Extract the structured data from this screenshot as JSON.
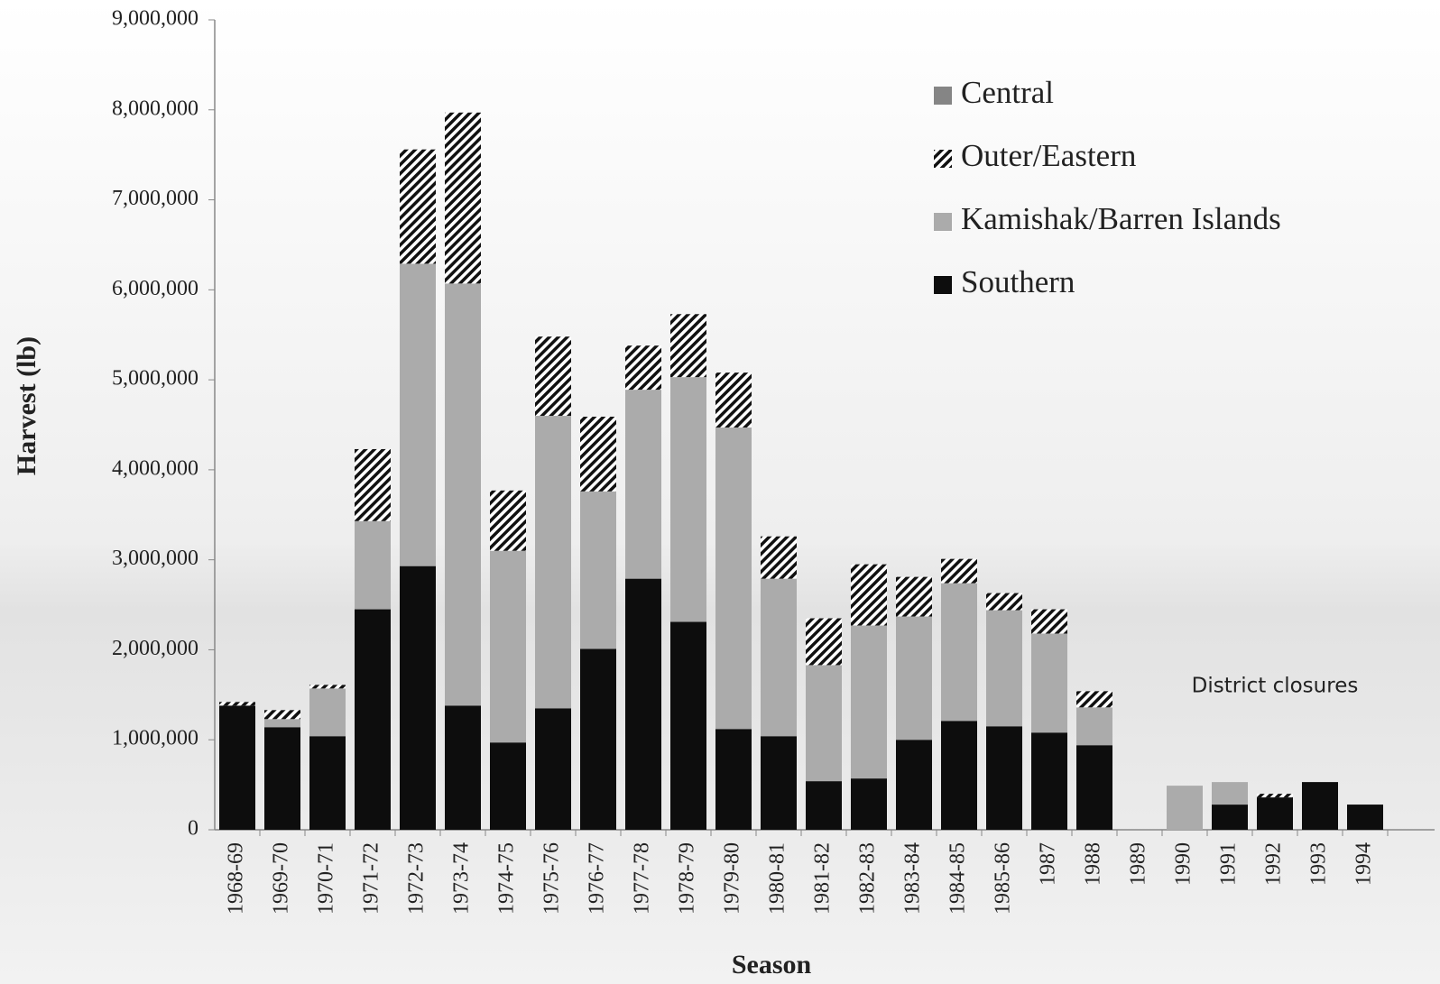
{
  "chart_data": {
    "type": "stacked-bar",
    "x_label": "Season",
    "y_label": "Harvest (lb)",
    "annotation": "District closures",
    "categories": [
      "1968-69",
      "1969-70",
      "1970-71",
      "1971-72",
      "1972-73",
      "1973-74",
      "1974-75",
      "1975-76",
      "1976-77",
      "1977-78",
      "1978-79",
      "1979-80",
      "1980-81",
      "1981-82",
      "1982-83",
      "1983-84",
      "1984-85",
      "1985-86",
      "1987",
      "1988",
      "1989",
      "1990",
      "1991",
      "1992",
      "1993",
      "1994"
    ],
    "series": [
      {
        "name": "Central",
        "color": "#858585",
        "hatch": false,
        "values": [
          0,
          0,
          0,
          0,
          0,
          0,
          0,
          0,
          0,
          0,
          0,
          0,
          0,
          0,
          0,
          0,
          0,
          0,
          0,
          0,
          0,
          0,
          0,
          0,
          0,
          0
        ]
      },
      {
        "name": "Outer/Eastern",
        "color": "#111111",
        "hatch": true,
        "values": [
          40000,
          100000,
          40000,
          800000,
          1270000,
          1900000,
          670000,
          880000,
          830000,
          490000,
          700000,
          610000,
          470000,
          520000,
          680000,
          440000,
          270000,
          190000,
          270000,
          180000,
          0,
          0,
          0,
          40000,
          0,
          0
        ]
      },
      {
        "name": "Kamishak/Barren Islands",
        "color": "#ababab",
        "hatch": false,
        "values": [
          0,
          90000,
          530000,
          980000,
          3360000,
          4690000,
          2130000,
          3250000,
          1750000,
          2100000,
          2720000,
          3350000,
          1750000,
          1290000,
          1700000,
          1370000,
          1530000,
          1290000,
          1100000,
          420000,
          0,
          490000,
          250000,
          0,
          0,
          0
        ]
      },
      {
        "name": "Southern",
        "color": "#0d0d0d",
        "hatch": false,
        "values": [
          1380000,
          1140000,
          1040000,
          2450000,
          2930000,
          1380000,
          970000,
          1350000,
          2010000,
          2790000,
          2310000,
          1120000,
          1040000,
          540000,
          570000,
          1000000,
          1210000,
          1150000,
          1080000,
          940000,
          0,
          0,
          280000,
          360000,
          530000,
          280000
        ]
      }
    ],
    "ylim": [
      0,
      9000000
    ],
    "yticks": [
      {
        "value": 0,
        "label": "0"
      },
      {
        "value": 1000000,
        "label": "1,000,000"
      },
      {
        "value": 2000000,
        "label": "2,000,000"
      },
      {
        "value": 3000000,
        "label": "3,000,000"
      },
      {
        "value": 4000000,
        "label": "4,000,000"
      },
      {
        "value": 5000000,
        "label": "5,000,000"
      },
      {
        "value": 6000000,
        "label": "6,000,000"
      },
      {
        "value": 7000000,
        "label": "7,000,000"
      },
      {
        "value": 8000000,
        "label": "8,000,000"
      },
      {
        "value": 9000000,
        "label": "9,000,000"
      }
    ],
    "legend": "top-right"
  }
}
